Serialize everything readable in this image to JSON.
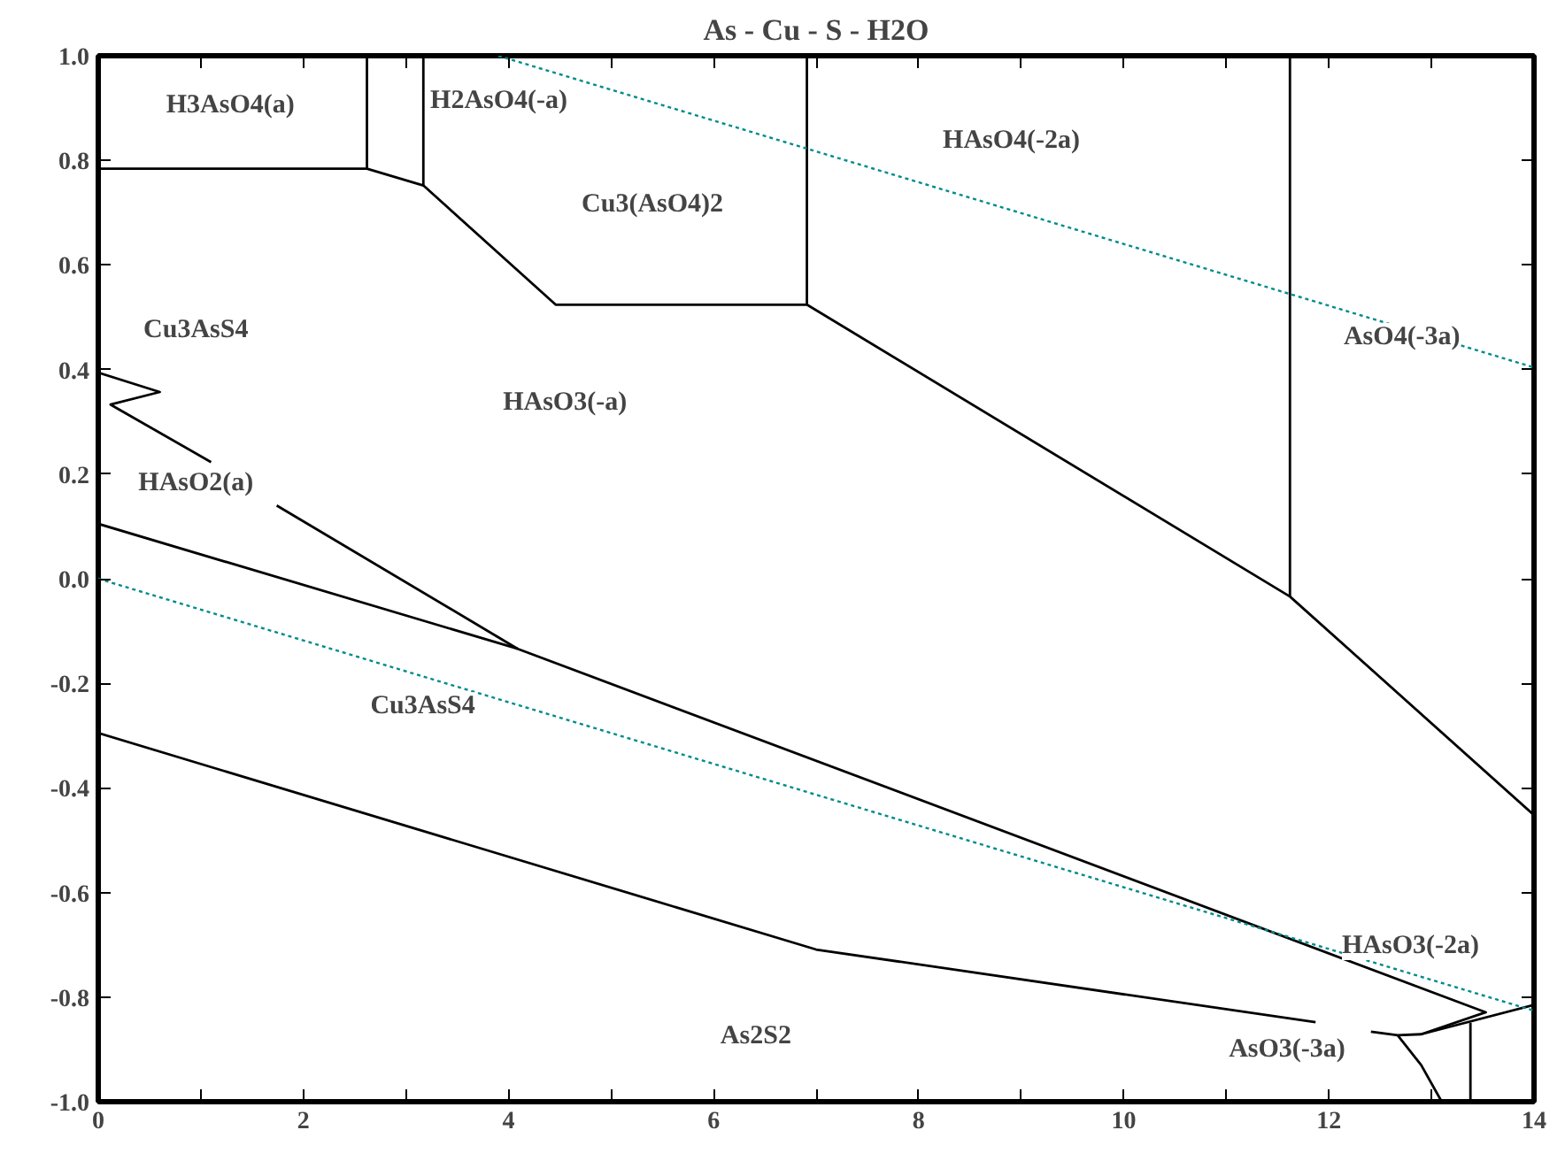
{
  "chart_data": {
    "type": "line",
    "title": "As - Cu - S - H2O",
    "xlim": [
      0,
      14
    ],
    "ylim": [
      -1.0,
      1.0
    ],
    "xticks": [
      0,
      {
        "value": 1,
        "label": null
      },
      2,
      {
        "value": 3,
        "label": null
      },
      4,
      {
        "value": 5,
        "label": null
      },
      6,
      {
        "value": 7,
        "label": null
      },
      8,
      {
        "value": 9,
        "label": null
      },
      10,
      {
        "value": 11,
        "label": null
      },
      12,
      {
        "value": 13,
        "label": null
      },
      14
    ],
    "yticks": [
      {
        "value": -1.0,
        "label": "-1.0"
      },
      -0.8,
      -0.6,
      -0.4,
      -0.2,
      {
        "value": 0,
        "label": "0.0"
      },
      0.2,
      0.4,
      0.6,
      0.8,
      {
        "value": 1.0,
        "label": "1.0"
      }
    ],
    "grid": false,
    "marker": "none",
    "line_style": "solid",
    "series": [
      {
        "color": "#000000",
        "x": [
          0,
          2.62,
          3.17,
          4.46,
          6.91,
          11.62,
          14
        ],
        "values": [
          0.784,
          0.784,
          0.752,
          0.524,
          0.524,
          -0.034,
          -0.452
        ]
      },
      {
        "color": "#000000",
        "x": [
          2.62,
          2.62
        ],
        "values": [
          0.784,
          1.0
        ]
      },
      {
        "color": "#000000",
        "x": [
          3.17,
          3.17
        ],
        "values": [
          0.752,
          1.0
        ]
      },
      {
        "color": "#000000",
        "x": [
          6.91,
          6.91
        ],
        "values": [
          0.524,
          1.0
        ]
      },
      {
        "color": "#000000",
        "x": [
          11.62,
          11.62
        ],
        "values": [
          -0.034,
          1.0
        ]
      },
      {
        "color": "#000000",
        "x": [
          0,
          0.6,
          0.12,
          1.1,
          1.4,
          1.74,
          4.09
        ],
        "values": [
          0.394,
          0.357,
          0.333,
          0.223,
          null,
          0.14,
          -0.134
        ]
      },
      {
        "color": "#000000",
        "x": [
          0,
          4.09,
          13.53,
          12.9,
          12.67,
          12.41
        ],
        "values": [
          0.105,
          -0.134,
          -0.829,
          -0.871,
          -0.873,
          -0.866
        ]
      },
      {
        "color": "#000000",
        "x": [
          0,
          7.0,
          11.87
        ],
        "values": [
          -0.295,
          -0.709,
          -0.848
        ]
      },
      {
        "color": "#000000",
        "x": [
          12.9,
          14
        ],
        "values": [
          -0.871,
          -0.815
        ]
      },
      {
        "color": "#000000",
        "x": [
          12.67,
          12.9,
          13.1
        ],
        "values": [
          -0.873,
          -0.93,
          -1.0
        ]
      },
      {
        "color": "#000000",
        "x": [
          13.38,
          13.38
        ],
        "values": [
          -1.0,
          -0.849
        ]
      },
      {
        "color": "#008b8b",
        "line_style": "dotted",
        "x": [
          3.9,
          14
        ],
        "values": [
          1.0,
          0.404
        ]
      },
      {
        "color": "#008b8b",
        "line_style": "dotted",
        "x": [
          0,
          14
        ],
        "values": [
          0,
          -0.826
        ]
      }
    ],
    "annotations": [
      "H3AsO4(a)",
      "H2AsO4(-a)",
      "Cu3(AsO4)2",
      "HAsO4(-2a)",
      "Cu3AsS4",
      "HAsO3(-a)",
      "AsO4(-3a)",
      "HAsO2(a)",
      "Cu3AsS4",
      "HAsO3(-2a)",
      "As2S2",
      "AsO3(-3a)"
    ]
  }
}
